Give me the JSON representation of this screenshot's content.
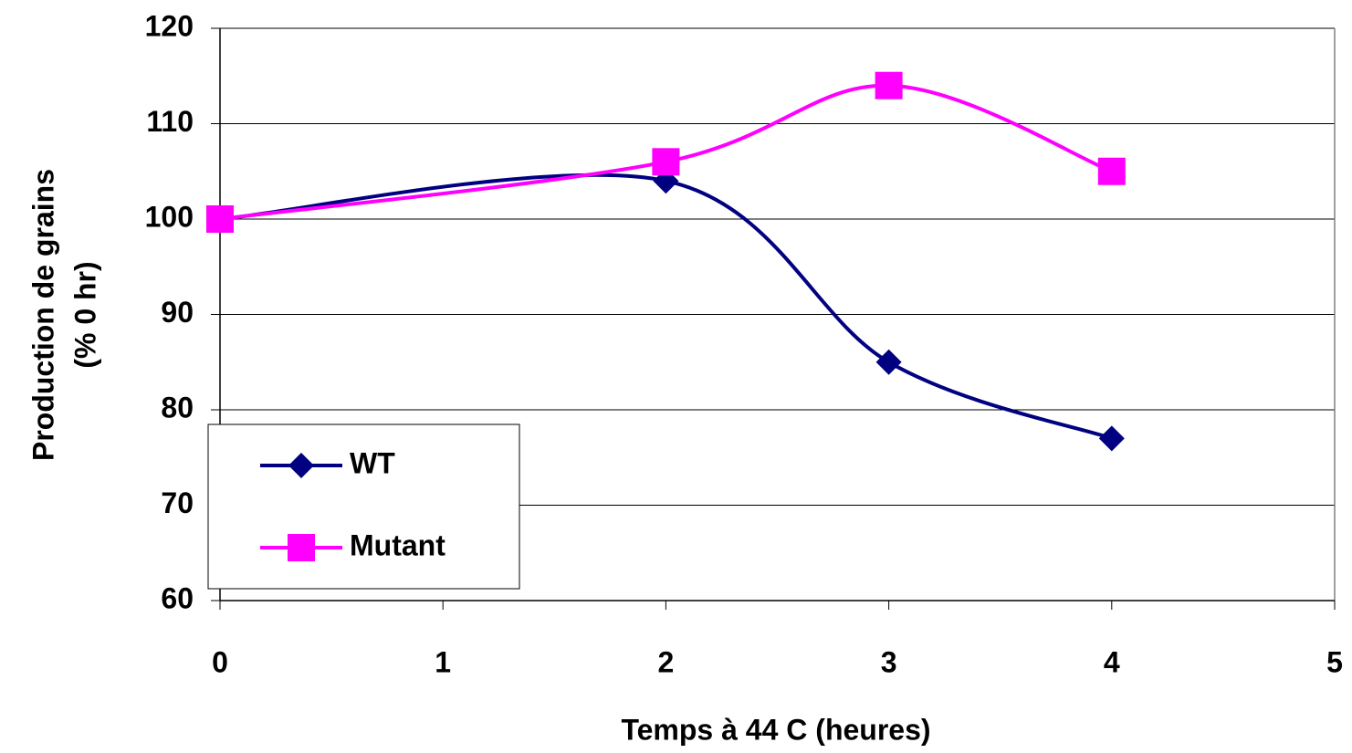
{
  "chart_data": {
    "type": "line",
    "xlabel": "Temps à 44 C (heures)",
    "ylabel": [
      "Production de grains",
      "(% 0 hr)"
    ],
    "x": [
      0,
      2,
      3,
      4
    ],
    "series": [
      {
        "name": "WT",
        "color": "#000080",
        "marker": "diamond",
        "values": [
          100,
          104,
          85,
          77
        ]
      },
      {
        "name": "Mutant",
        "color": "#ff00ff",
        "marker": "square",
        "values": [
          100,
          106,
          114,
          105
        ]
      }
    ],
    "xlim": [
      0,
      5
    ],
    "xticks": [
      0,
      1,
      2,
      3,
      4,
      5
    ],
    "ylim": [
      60,
      120
    ],
    "yticks": [
      60,
      70,
      80,
      90,
      100,
      110,
      120
    ],
    "grid": true,
    "smooth": true,
    "legend": "lower-left"
  }
}
